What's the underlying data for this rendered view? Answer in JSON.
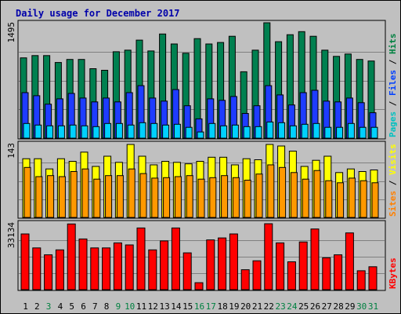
{
  "chart_data": {
    "type": "bar",
    "title": "Daily usage for December 2017",
    "categories": [
      "1",
      "2",
      "3",
      "4",
      "5",
      "6",
      "7",
      "8",
      "9",
      "10",
      "11",
      "12",
      "13",
      "14",
      "15",
      "16",
      "17",
      "18",
      "19",
      "20",
      "21",
      "22",
      "23",
      "24",
      "25",
      "26",
      "27",
      "28",
      "29",
      "30",
      "31"
    ],
    "weekend_days": [
      "3",
      "9",
      "10",
      "16",
      "17",
      "23",
      "24",
      "30",
      "31"
    ],
    "panels": [
      {
        "id": "hits",
        "ymax_label": "1495",
        "ylim": [
          0,
          1495
        ],
        "legend": [
          {
            "text": "Pages",
            "color": "#00c0c0"
          },
          {
            "text": " / ",
            "color": "#000000"
          },
          {
            "text": "Files",
            "color": "#0040ff"
          },
          {
            "text": " / ",
            "color": "#000000"
          },
          {
            "text": "Hits",
            "color": "#008040"
          }
        ],
        "series": [
          {
            "name": "Hits",
            "color": "#008050",
            "values": [
              1040,
              1070,
              1070,
              980,
              1020,
              1020,
              900,
              880,
              1120,
              1140,
              1270,
              1130,
              1350,
              1220,
              1100,
              1290,
              1220,
              1240,
              1320,
              860,
              1140,
              1495,
              1250,
              1340,
              1380,
              1320,
              1140,
              1060,
              1090,
              1020,
              1000
            ]
          },
          {
            "name": "Files",
            "color": "#1e3cff",
            "values": [
              590,
              550,
              440,
              510,
              580,
              520,
              470,
              520,
              470,
              590,
              680,
              520,
              480,
              630,
              420,
              250,
              510,
              490,
              540,
              320,
              420,
              680,
              560,
              430,
              590,
              620,
              480,
              470,
              520,
              460,
              330
            ]
          },
          {
            "name": "Pages",
            "color": "#00d0ff",
            "values": [
              190,
              170,
              160,
              160,
              170,
              160,
              150,
              190,
              190,
              170,
              200,
              190,
              170,
              180,
              140,
              80,
              190,
              160,
              170,
              150,
              150,
              210,
              200,
              160,
              180,
              190,
              140,
              140,
              190,
              140,
              140
            ]
          }
        ]
      },
      {
        "id": "visits",
        "ymax_label": "143",
        "ylim": [
          0,
          143
        ],
        "legend": [
          {
            "text": "Sites",
            "color": "#ff8000"
          },
          {
            "text": " / ",
            "color": "#000000"
          },
          {
            "text": "Visits",
            "color": "#ffff00"
          }
        ],
        "series": [
          {
            "name": "Visits",
            "color": "#ffff00",
            "values": [
              115,
              115,
              95,
              115,
              110,
              128,
              100,
              120,
              108,
              143,
              120,
              103,
              110,
              108,
              105,
              110,
              118,
              118,
              103,
              115,
              113,
              143,
              140,
              130,
              100,
              112,
              120,
              88,
              95,
              90,
              93
            ]
          },
          {
            "name": "Sites",
            "color": "#ff9900",
            "values": [
              98,
              80,
              82,
              80,
              90,
              95,
              75,
              82,
              82,
              95,
              86,
              77,
              78,
              80,
              82,
              75,
              78,
              82,
              78,
              73,
              85,
              103,
              98,
              88,
              75,
              92,
              72,
              68,
              77,
              72,
              68
            ]
          }
        ]
      },
      {
        "id": "kbytes",
        "ymax_label": "33134",
        "ylim": [
          0,
          33134
        ],
        "legend": [
          {
            "text": "KBytes",
            "color": "#ff0000"
          }
        ],
        "series": [
          {
            "name": "KBytes",
            "color": "#ff0000",
            "values": [
              28000,
              21000,
              17500,
              20000,
              33000,
              25500,
              21000,
              21000,
              23500,
              22500,
              31000,
              20000,
              24500,
              31000,
              18500,
              3500,
              25000,
              26000,
              28000,
              10000,
              14500,
              33134,
              23500,
              14000,
              24000,
              30500,
              16000,
              17500,
              28500,
              9500,
              11500
            ]
          }
        ]
      }
    ]
  }
}
